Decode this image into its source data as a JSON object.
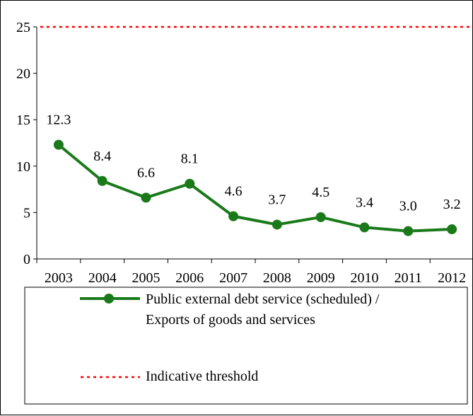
{
  "chart_data": {
    "type": "line",
    "categories": [
      "2003",
      "2004",
      "2005",
      "2006",
      "2007",
      "2008",
      "2009",
      "2010",
      "2011",
      "2012"
    ],
    "series": [
      {
        "name": "Public external debt service (scheduled) / Exports of goods and services",
        "name_lines": [
          "Public external debt service (scheduled) /",
          "Exports of goods and services"
        ],
        "values": [
          12.3,
          8.4,
          6.6,
          8.1,
          4.6,
          3.7,
          4.5,
          3.4,
          3.0,
          3.2
        ],
        "labels": [
          "12.3",
          "8.4",
          "6.6",
          "8.1",
          "4.6",
          "3.7",
          "4.5",
          "3.4",
          "3.0",
          "3.2"
        ],
        "color": "#1a7a1a",
        "style": "solid-with-markers"
      },
      {
        "name": "Indicative threshold",
        "values": [
          25,
          25,
          25,
          25,
          25,
          25,
          25,
          25,
          25,
          25
        ],
        "color": "#ff0000",
        "style": "dotted"
      }
    ],
    "ylim": [
      0,
      25
    ],
    "yticks": [
      0,
      5,
      10,
      15,
      20,
      25
    ],
    "ytick_labels": [
      "0",
      "5",
      "10",
      "15",
      "20",
      "25"
    ],
    "grid": false,
    "legend_position": "bottom"
  }
}
